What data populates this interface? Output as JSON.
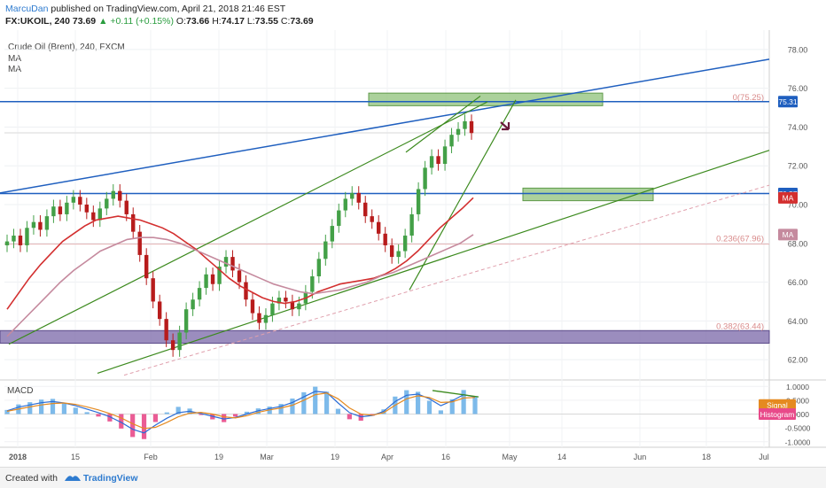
{
  "header": {
    "author": "MarcuDan",
    "published": "published on TradingView.com, April 21, 2018 21:46 EST",
    "symbol": "FX:UKOIL, 240",
    "last": "73.69",
    "change": "▲ +0.11 (+0.15%)",
    "open_label": "O:",
    "open": "73.66",
    "high_label": "H:",
    "high": "74.17",
    "low_label": "L:",
    "low": "73.55",
    "close_label": "C:",
    "close": "73.69"
  },
  "legend": {
    "title": "Crude Oil (Brent), 240, FXCM",
    "ma1": "MA",
    "ma2": "MA"
  },
  "footer": {
    "created": "Created with",
    "brand": "TradingView"
  },
  "colors": {
    "candle_up": "#43a047",
    "candle_down": "#b71c1c",
    "ma_fast": "#d32f2f",
    "ma_slow": "#c58a9e",
    "channel": "#3c8a1e",
    "blue_line": "#1f5fbf",
    "green_zone": "#8fc27a",
    "purple_zone": "#7a67a8",
    "macd_line": "#2b6cd6",
    "signal_line": "#e58a20",
    "hist_pos": "#6fb3e8",
    "hist_neg": "#e84a8a"
  },
  "chart_data": [
    {
      "type": "candlestick",
      "ylim": [
        61.0,
        79.0
      ],
      "yticks": [
        "62.00",
        "64.00",
        "66.00",
        "68.00",
        "70.00",
        "72.00",
        "74.00",
        "76.00",
        "78.00"
      ],
      "xticks": [
        "2018",
        "15",
        "Feb",
        "19",
        "Mar",
        "19",
        "Apr",
        "16",
        "May",
        "14",
        "Jun",
        "18",
        "Jul"
      ],
      "price_labels": [
        {
          "text": "75.31",
          "value": 75.31,
          "color": "#1f5fbf"
        },
        {
          "text": "70.57",
          "value": 70.57,
          "color": "#1f5fbf"
        },
        {
          "text": "MA",
          "value": 70.35,
          "color": "#d32f2f"
        },
        {
          "text": "MA",
          "value": 68.45,
          "color": "#c58a9e"
        }
      ],
      "fib_levels": [
        {
          "text": "0(75.25)",
          "value": 75.25
        },
        {
          "text": "0.236(67.96)",
          "value": 67.96
        },
        {
          "text": "0.382(63.44)",
          "value": 63.44
        }
      ],
      "series": [
        {
          "name": "Price",
          "close": [
            68.1,
            68.4,
            67.9,
            68.8,
            69.1,
            68.7,
            69.4,
            69.9,
            69.5,
            70.1,
            70.4,
            70.0,
            69.6,
            69.2,
            69.8,
            70.3,
            70.7,
            70.2,
            69.5,
            68.6,
            67.4,
            66.2,
            65.0,
            64.1,
            63.0,
            62.5,
            63.4,
            64.6,
            65.1,
            65.7,
            66.4,
            65.9,
            66.8,
            67.3,
            66.6,
            66.0,
            65.1,
            64.4,
            63.9,
            64.3,
            64.9,
            65.2,
            65.0,
            64.6,
            64.9,
            65.5,
            66.3,
            67.2,
            68.1,
            68.9,
            69.7,
            70.3,
            70.6,
            70.1,
            69.4,
            69.1,
            68.5,
            67.9,
            67.3,
            67.6,
            68.4,
            69.5,
            70.8,
            71.9,
            72.5,
            72.1,
            73.0,
            73.6,
            73.9,
            74.3,
            73.69
          ]
        },
        {
          "name": "MA",
          "close": [
            64.6,
            65.4,
            66.2,
            66.9,
            67.5,
            68.1,
            68.5,
            68.9,
            69.2,
            69.3,
            69.4,
            69.3,
            69.2,
            69.0,
            68.8,
            68.5,
            68.1,
            67.7,
            67.2,
            66.7,
            66.2,
            65.8,
            65.5,
            65.2,
            65.0,
            64.9,
            65.0,
            65.2,
            65.5,
            65.7,
            65.9,
            66.0,
            66.1,
            66.2,
            66.4,
            66.7,
            67.1,
            67.6,
            68.2,
            68.8,
            69.3,
            69.8,
            70.35
          ]
        },
        {
          "name": "MA",
          "close": [
            63.2,
            63.9,
            64.6,
            65.3,
            66.0,
            66.6,
            67.1,
            67.6,
            67.9,
            68.2,
            68.3,
            68.3,
            68.2,
            68.0,
            67.7,
            67.4,
            67.1,
            66.8,
            66.5,
            66.2,
            65.9,
            65.7,
            65.5,
            65.4,
            65.5,
            65.6,
            65.8,
            66.0,
            66.3,
            66.5,
            66.8,
            67.1,
            67.4,
            67.7,
            68.0,
            68.45
          ]
        }
      ]
    },
    {
      "type": "bar",
      "title": "MACD",
      "ylim": [
        -1.2,
        1.2
      ],
      "yticks": [
        "1.0000",
        "0.5000",
        "0.0000",
        "-0.5000",
        "-1.0000"
      ],
      "price_labels": [
        {
          "text": "Signal",
          "value": 0.33,
          "color": "#e58a20"
        },
        {
          "text": "Histogram",
          "value": 0.0,
          "color": "#e84a8a"
        }
      ],
      "series": [
        {
          "name": "MACD",
          "values": [
            0.12,
            0.25,
            0.33,
            0.41,
            0.45,
            0.4,
            0.3,
            0.18,
            0.05,
            -0.1,
            -0.3,
            -0.55,
            -0.68,
            -0.4,
            -0.15,
            0.05,
            0.1,
            0.02,
            -0.08,
            -0.18,
            -0.12,
            0.0,
            0.12,
            0.2,
            0.28,
            0.42,
            0.62,
            0.82,
            0.78,
            0.4,
            0.05,
            -0.1,
            -0.05,
            0.1,
            0.45,
            0.68,
            0.72,
            0.55,
            0.3,
            0.48,
            0.7,
            0.62
          ]
        },
        {
          "name": "Signal",
          "values": [
            0.1,
            0.18,
            0.26,
            0.33,
            0.38,
            0.4,
            0.35,
            0.26,
            0.15,
            0.02,
            -0.14,
            -0.35,
            -0.52,
            -0.48,
            -0.3,
            -0.1,
            0.03,
            0.06,
            0.0,
            -0.1,
            -0.14,
            -0.06,
            0.06,
            0.15,
            0.22,
            0.32,
            0.5,
            0.7,
            0.76,
            0.55,
            0.22,
            0.0,
            -0.04,
            0.05,
            0.32,
            0.55,
            0.66,
            0.6,
            0.42,
            0.44,
            0.58,
            0.6
          ]
        }
      ]
    }
  ]
}
